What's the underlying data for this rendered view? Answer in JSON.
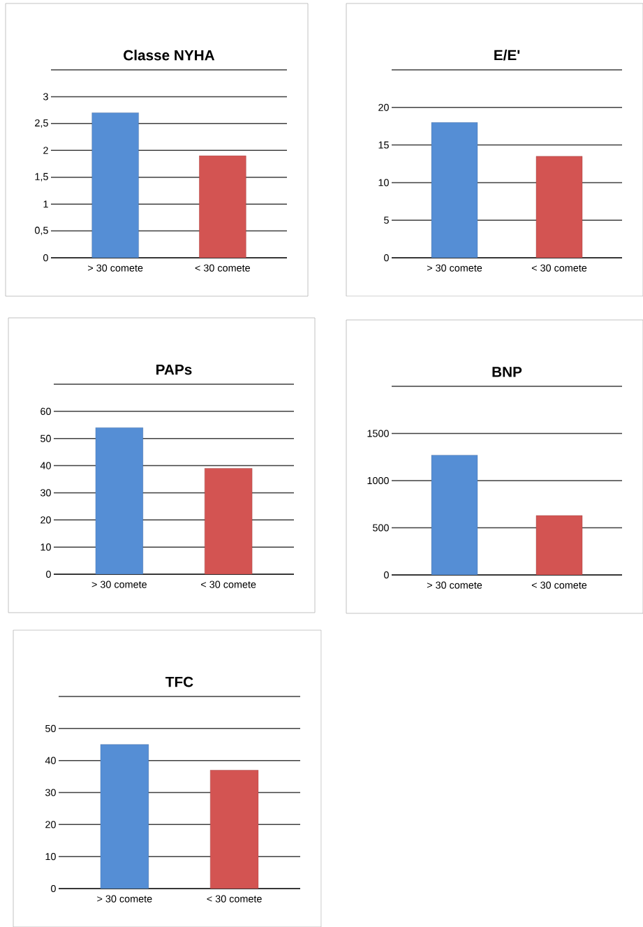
{
  "chart_data": [
    {
      "type": "bar",
      "title": "Classe NYHA",
      "categories": [
        "> 30 comete",
        "< 30 comete"
      ],
      "values": [
        2.7,
        1.9
      ],
      "colors": [
        "#558ed5",
        "#d35452"
      ],
      "ylim": [
        0,
        3.5
      ],
      "yticks": [
        0,
        {
          "value": 0.5,
          "label": "0,5"
        },
        1,
        {
          "value": 1.5,
          "label": "1,5"
        },
        2,
        {
          "value": 2.5,
          "label": "2,5"
        },
        3,
        {
          "value": 3.5,
          "label": null
        }
      ],
      "grid": "y"
    },
    {
      "type": "bar",
      "title": "E/E'",
      "categories": [
        "> 30 comete",
        "< 30 comete"
      ],
      "values": [
        18,
        13.5
      ],
      "colors": [
        "#558ed5",
        "#d35452"
      ],
      "ylim": [
        0,
        25
      ],
      "yticks": [
        0,
        5,
        10,
        15,
        20,
        {
          "value": 25,
          "label": null
        }
      ],
      "grid": "y"
    },
    {
      "type": "bar",
      "title": "PAPs",
      "categories": [
        "> 30 comete",
        "< 30 comete"
      ],
      "values": [
        54,
        39
      ],
      "colors": [
        "#558ed5",
        "#d35452"
      ],
      "ylim": [
        0,
        70
      ],
      "yticks": [
        0,
        10,
        20,
        30,
        40,
        50,
        60,
        {
          "value": 70,
          "label": null
        }
      ],
      "grid": "y"
    },
    {
      "type": "bar",
      "title": "BNP",
      "categories": [
        "> 30 comete",
        "< 30 comete"
      ],
      "values": [
        1270,
        630
      ],
      "colors": [
        "#558ed5",
        "#d35452"
      ],
      "ylim": [
        0,
        2000
      ],
      "yticks": [
        0,
        500,
        1000,
        1500,
        {
          "value": 2000,
          "label": null
        }
      ],
      "grid": "y"
    },
    {
      "type": "bar",
      "title": "TFC",
      "categories": [
        "> 30 comete",
        "< 30 comete"
      ],
      "values": [
        45,
        37
      ],
      "colors": [
        "#558ed5",
        "#d35452"
      ],
      "ylim": [
        0,
        60
      ],
      "yticks": [
        0,
        10,
        20,
        30,
        40,
        50,
        {
          "value": 60,
          "label": null
        }
      ],
      "grid": "y"
    }
  ]
}
